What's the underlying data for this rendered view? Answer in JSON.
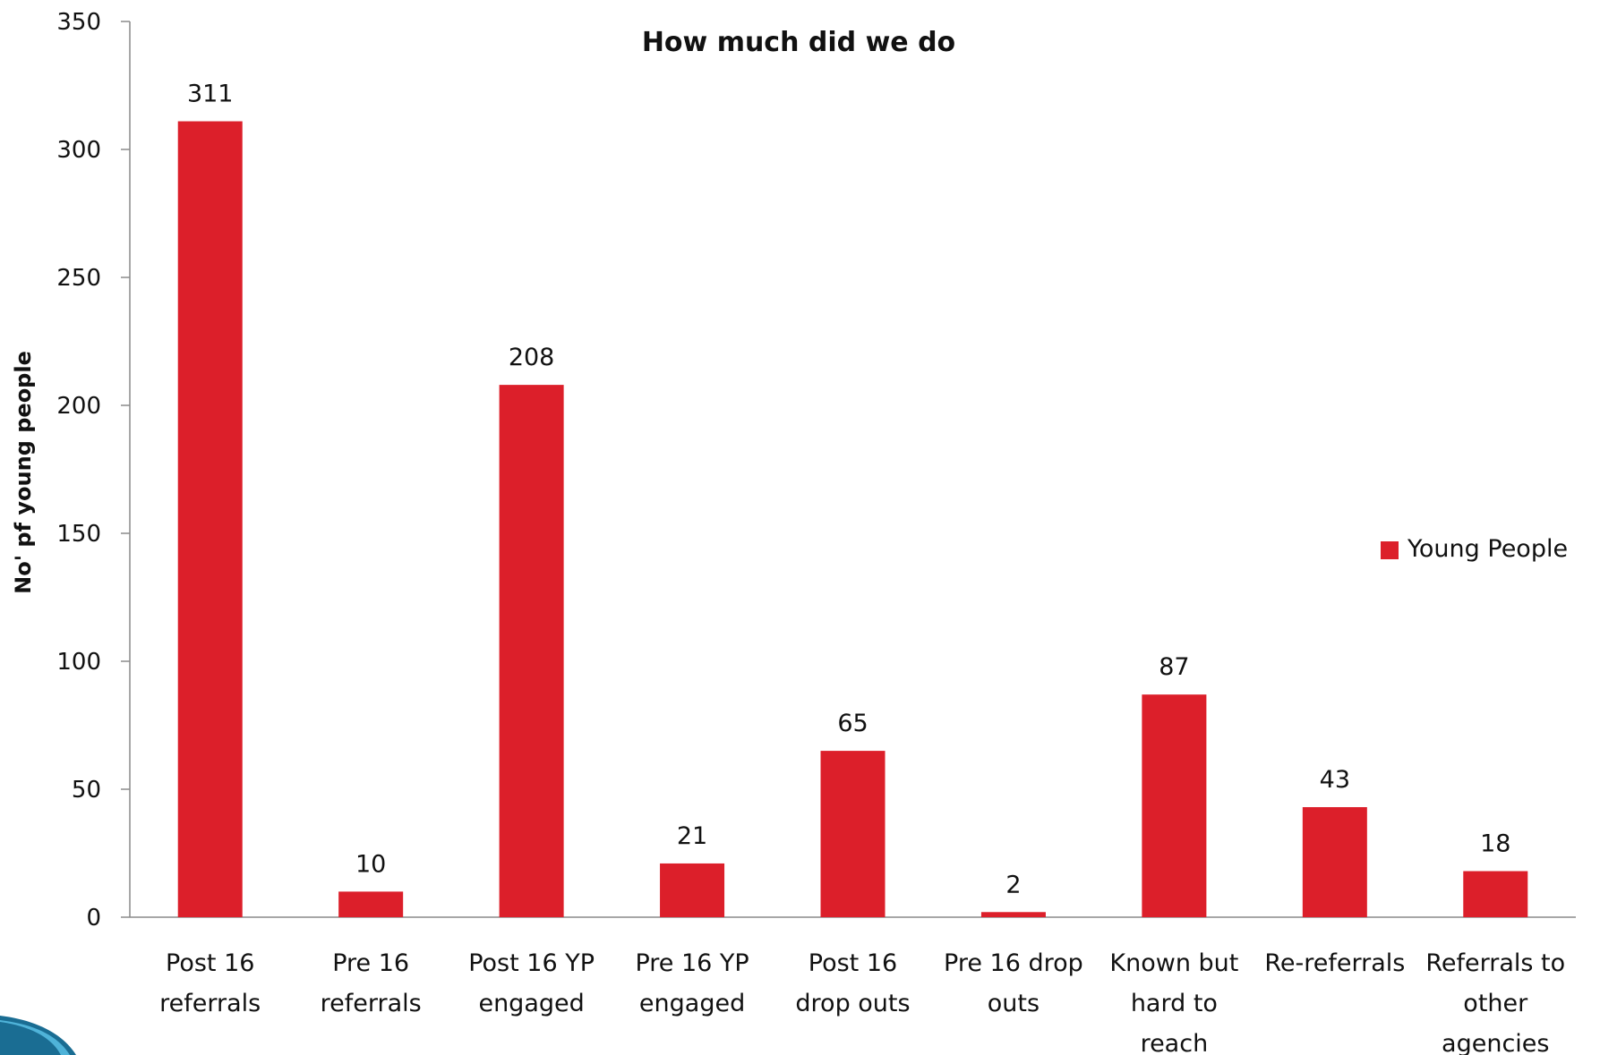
{
  "chart_data": {
    "type": "bar",
    "title": "How much did we do",
    "xlabel": "",
    "ylabel": "No' pf young people",
    "ylim": [
      0,
      350
    ],
    "yticks": [
      0,
      50,
      100,
      150,
      200,
      250,
      300,
      350
    ],
    "grid": false,
    "legend_position": "right",
    "categories": [
      [
        "Post 16",
        "referrals"
      ],
      [
        "Pre 16",
        "referrals"
      ],
      [
        "Post 16 YP",
        "engaged"
      ],
      [
        "Pre 16 YP",
        "engaged"
      ],
      [
        "Post 16",
        "drop outs"
      ],
      [
        "Pre 16 drop",
        "outs"
      ],
      [
        "Known but",
        "hard to",
        "reach"
      ],
      [
        "Re-referrals"
      ],
      [
        "Referrals to",
        "other",
        "agencies"
      ]
    ],
    "series": [
      {
        "name": "Young People",
        "color": "#dc1f2a",
        "values": [
          311,
          10,
          208,
          21,
          65,
          2,
          87,
          43,
          18
        ],
        "data_labels": [
          "311",
          "10",
          "208",
          "21",
          "65",
          "2",
          "87",
          "43",
          "18"
        ]
      }
    ]
  }
}
